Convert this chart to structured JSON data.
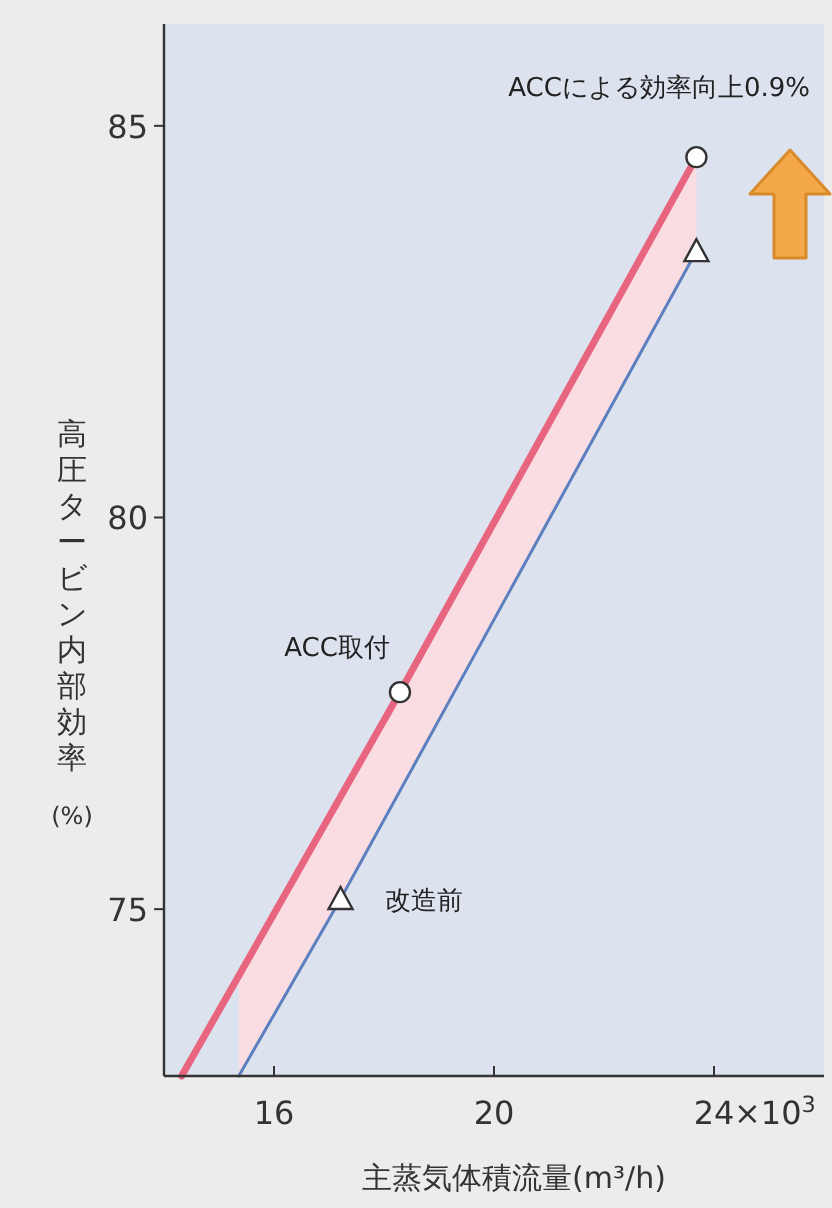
{
  "chart_data": {
    "type": "line",
    "annotations": [
      "ACCによる効率向上0.9%",
      "×10$^{3}$"
    ],
    "xlabel": "主蒸気体積流量(m³/h)",
    "ylabel": "高圧タービン内部効率(%)",
    "xlim": [
      14,
      26
    ],
    "ylim": [
      72.87,
      86.3
    ],
    "xticks": [
      16,
      20,
      24
    ],
    "yticks": [
      75,
      80,
      85
    ],
    "series": [
      {
        "name": "ACC取付",
        "color": "#e8657f",
        "x": [
          14.32,
          15.36,
          18.29,
          23.68
        ],
        "values": [
          72.87,
          74.15,
          77.77,
          84.6
        ],
        "lower": [
          null,
          72.87,
          76.51,
          83.4
        ],
        "upper": [
          null,
          74.15,
          77.77,
          84.6
        ]
      },
      {
        "name": "改造前",
        "color": "#5b7fbf",
        "x": [
          15.36,
          17.21,
          23.68
        ],
        "values": [
          72.87,
          75.13,
          83.4
        ]
      },
      {
        "type": "scatter",
        "marker": "circle",
        "color": "#333333",
        "x": [
          18.29,
          23.68
        ],
        "values": [
          77.77,
          84.6
        ]
      },
      {
        "type": "scatter",
        "marker": "triangle",
        "color": "#333333",
        "x": [
          17.21,
          23.68
        ],
        "values": [
          75.13,
          83.4
        ]
      }
    ]
  }
}
